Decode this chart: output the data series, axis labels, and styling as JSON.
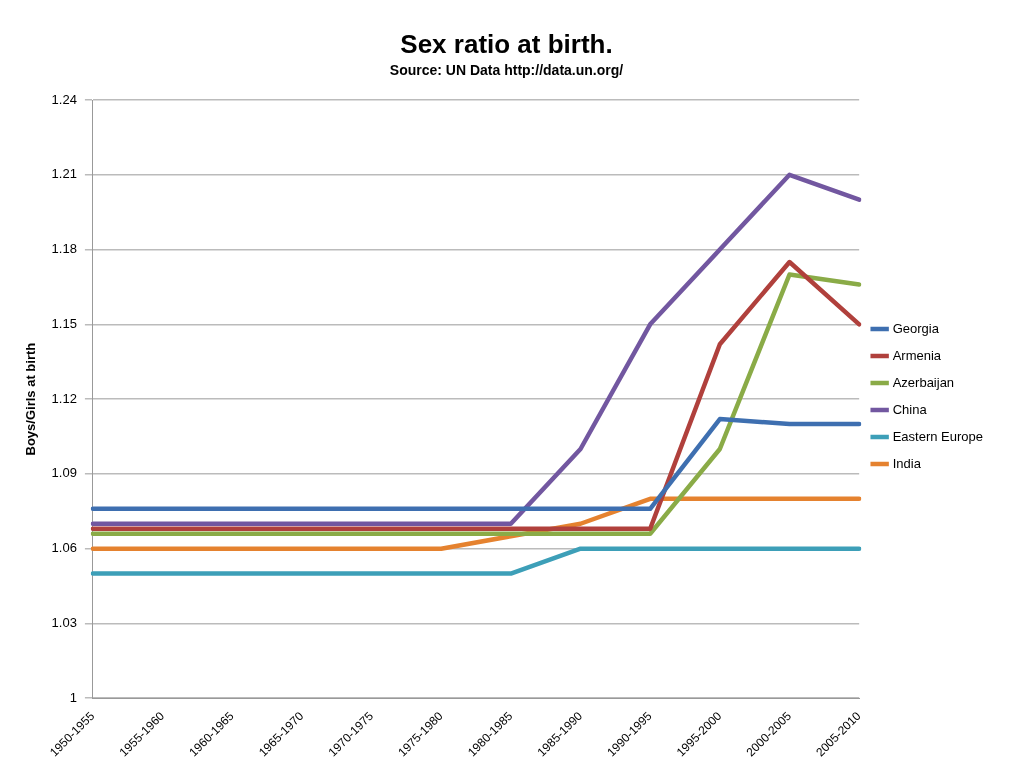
{
  "chart_data": {
    "type": "line",
    "title": "Sex ratio at birth.",
    "subtitle": "Source: UN Data http://data.un.org/",
    "ylabel": "Boys/Girls at birth",
    "categories": [
      "1950-1955",
      "1955-1960",
      "1960-1965",
      "1965-1970",
      "1970-1975",
      "1975-1980",
      "1980-1985",
      "1985-1990",
      "1990-1995",
      "1995-2000",
      "2000-2005",
      "2005-2010"
    ],
    "series": [
      {
        "name": "Georgia",
        "color": "#3e6fb0",
        "values": [
          1.076,
          1.076,
          1.076,
          1.076,
          1.076,
          1.076,
          1.076,
          1.076,
          1.076,
          1.112,
          1.11,
          1.11
        ]
      },
      {
        "name": "Armenia",
        "color": "#b0403c",
        "values": [
          1.068,
          1.068,
          1.068,
          1.068,
          1.068,
          1.068,
          1.068,
          1.068,
          1.068,
          1.142,
          1.175,
          1.15
        ]
      },
      {
        "name": "Azerbaijan",
        "color": "#8aab47",
        "values": [
          1.066,
          1.066,
          1.066,
          1.066,
          1.066,
          1.066,
          1.066,
          1.066,
          1.066,
          1.1,
          1.17,
          1.166
        ]
      },
      {
        "name": "China",
        "color": "#7257a0",
        "values": [
          1.07,
          1.07,
          1.07,
          1.07,
          1.07,
          1.07,
          1.07,
          1.1,
          1.15,
          1.18,
          1.21,
          1.2
        ]
      },
      {
        "name": "Eastern Europe",
        "color": "#3d9fb8",
        "values": [
          1.05,
          1.05,
          1.05,
          1.05,
          1.05,
          1.05,
          1.05,
          1.06,
          1.06,
          1.06,
          1.06,
          1.06
        ]
      },
      {
        "name": "India",
        "color": "#e5822f",
        "values": [
          1.06,
          1.06,
          1.06,
          1.06,
          1.06,
          1.06,
          1.065,
          1.07,
          1.08,
          1.08,
          1.08,
          1.08
        ]
      }
    ],
    "ylim": [
      1,
      1.24
    ],
    "yticks": [
      1,
      1.03,
      1.06,
      1.09,
      1.12,
      1.15,
      1.18,
      1.21,
      1.24
    ],
    "grid": "y",
    "legend": "right",
    "marker": "none",
    "line_style": "solid"
  }
}
